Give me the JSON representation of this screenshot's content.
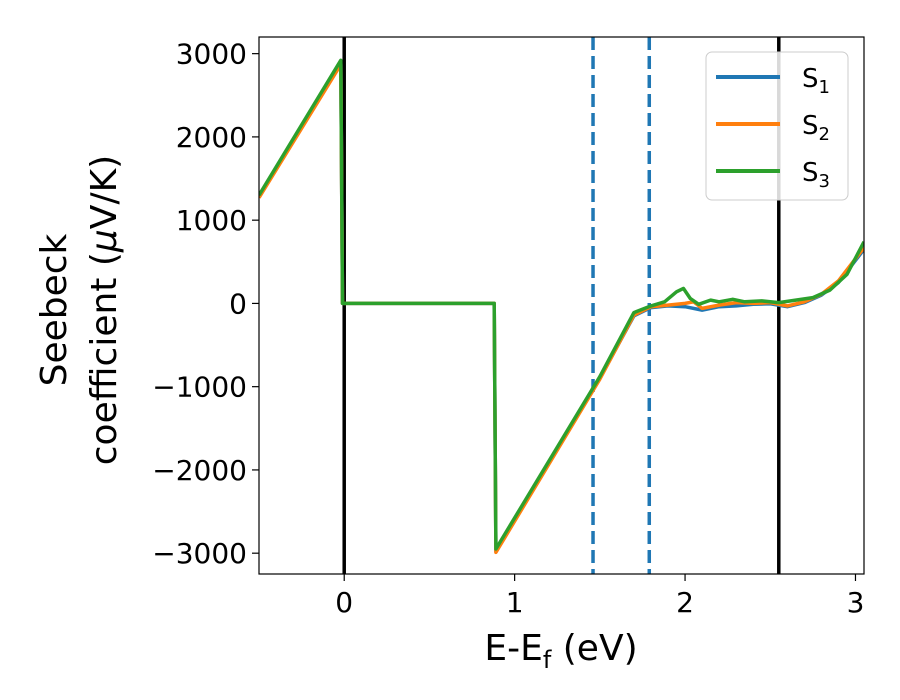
{
  "chart_data": {
    "type": "line",
    "xlabel": {
      "main": "E-E",
      "sub": "f",
      "unit": " (eV)"
    },
    "ylabel": {
      "line1": "Seebeck",
      "line2": "coefficient  (",
      "mu": "μ",
      "unit": "V/K)"
    },
    "xlim": [
      -0.5,
      3.05
    ],
    "ylim": [
      -3250,
      3200
    ],
    "x_ticks": [
      0,
      1,
      2,
      3
    ],
    "x_tick_labels": [
      "0",
      "1",
      "2",
      "3"
    ],
    "y_ticks": [
      -3000,
      -2000,
      -1000,
      0,
      1000,
      2000,
      3000
    ],
    "y_tick_labels": [
      "−3000",
      "−2000",
      "−1000",
      "0",
      "1000",
      "2000",
      "3000"
    ],
    "grid": false,
    "legend_position": "top-right",
    "vertical_lines": [
      {
        "x": 0.0,
        "style": "solid",
        "color": "#000000"
      },
      {
        "x": 2.55,
        "style": "solid",
        "color": "#000000"
      },
      {
        "x": 1.46,
        "style": "dashed",
        "color": "#1f77b4"
      },
      {
        "x": 1.79,
        "style": "dashed",
        "color": "#1f77b4"
      }
    ],
    "series": [
      {
        "name": "S",
        "sub": "1",
        "color": "#1f77b4",
        "points": [
          [
            -0.5,
            1280
          ],
          [
            -0.02,
            2880
          ],
          [
            -0.01,
            0
          ],
          [
            0.88,
            0
          ],
          [
            0.89,
            -2980
          ],
          [
            1.5,
            -900
          ],
          [
            1.7,
            -150
          ],
          [
            1.8,
            -50
          ],
          [
            1.9,
            -30
          ],
          [
            2.0,
            -40
          ],
          [
            2.1,
            -80
          ],
          [
            2.2,
            -40
          ],
          [
            2.3,
            -30
          ],
          [
            2.4,
            -10
          ],
          [
            2.5,
            -5
          ],
          [
            2.6,
            -40
          ],
          [
            2.7,
            10
          ],
          [
            2.8,
            100
          ],
          [
            2.9,
            250
          ],
          [
            3.05,
            650
          ]
        ]
      },
      {
        "name": "S",
        "sub": "2",
        "color": "#ff7f0e",
        "points": [
          [
            -0.5,
            1270
          ],
          [
            -0.02,
            2870
          ],
          [
            -0.01,
            0
          ],
          [
            0.88,
            0
          ],
          [
            0.89,
            -2990
          ],
          [
            1.5,
            -910
          ],
          [
            1.7,
            -140
          ],
          [
            1.8,
            -40
          ],
          [
            1.9,
            -20
          ],
          [
            2.0,
            0
          ],
          [
            2.05,
            20
          ],
          [
            2.1,
            -60
          ],
          [
            2.2,
            -20
          ],
          [
            2.3,
            10
          ],
          [
            2.4,
            0
          ],
          [
            2.5,
            10
          ],
          [
            2.6,
            -30
          ],
          [
            2.7,
            20
          ],
          [
            2.8,
            110
          ],
          [
            2.9,
            270
          ],
          [
            3.05,
            670
          ]
        ]
      },
      {
        "name": "S",
        "sub": "3",
        "color": "#2ca02c",
        "points": [
          [
            -0.5,
            1300
          ],
          [
            -0.02,
            2920
          ],
          [
            -0.01,
            0
          ],
          [
            0.88,
            0
          ],
          [
            0.89,
            -2950
          ],
          [
            1.5,
            -880
          ],
          [
            1.7,
            -110
          ],
          [
            1.8,
            -30
          ],
          [
            1.88,
            20
          ],
          [
            1.95,
            140
          ],
          [
            1.99,
            180
          ],
          [
            2.03,
            60
          ],
          [
            2.08,
            -10
          ],
          [
            2.15,
            40
          ],
          [
            2.2,
            20
          ],
          [
            2.28,
            50
          ],
          [
            2.35,
            20
          ],
          [
            2.45,
            30
          ],
          [
            2.55,
            10
          ],
          [
            2.65,
            40
          ],
          [
            2.75,
            70
          ],
          [
            2.85,
            160
          ],
          [
            2.95,
            350
          ],
          [
            3.05,
            740
          ]
        ]
      }
    ]
  }
}
